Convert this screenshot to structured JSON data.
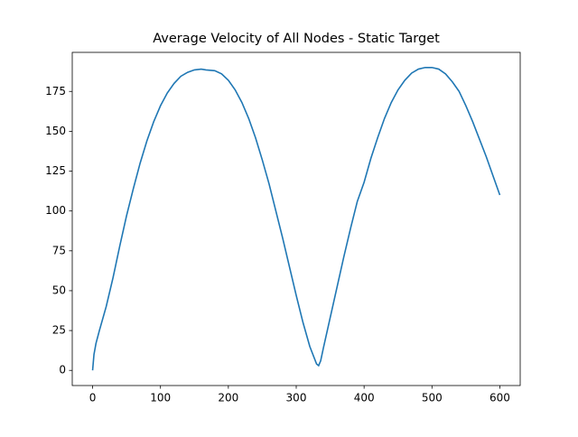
{
  "chart_data": {
    "type": "line",
    "title": "Average Velocity of All Nodes - Static Target",
    "x": [
      0,
      2,
      5,
      10,
      20,
      30,
      40,
      50,
      60,
      70,
      80,
      90,
      100,
      110,
      120,
      130,
      140,
      150,
      160,
      167,
      180,
      190,
      200,
      210,
      220,
      230,
      240,
      250,
      260,
      270,
      280,
      290,
      300,
      310,
      320,
      330,
      333,
      336,
      340,
      350,
      360,
      370,
      380,
      390,
      400,
      410,
      420,
      430,
      440,
      450,
      460,
      470,
      480,
      490,
      500,
      510,
      520,
      530,
      540,
      550,
      560,
      570,
      580,
      590,
      600
    ],
    "series": [
      {
        "color": "#1f77b4",
        "values": [
          0,
          10,
          17,
          25,
          40,
          58,
          78,
          97,
          114,
          130,
          144,
          156,
          166,
          174,
          180,
          184.5,
          187,
          188.5,
          189,
          188.5,
          188,
          186,
          182,
          176,
          168,
          158,
          146,
          132,
          117,
          100,
          83,
          65,
          47,
          30,
          15,
          4,
          3,
          6,
          14,
          33,
          52,
          71,
          89,
          106,
          118,
          133,
          146,
          158,
          168,
          176,
          182,
          186.5,
          189,
          190,
          190,
          189,
          186,
          181,
          175,
          166,
          156,
          145,
          134,
          122,
          110
        ]
      }
    ],
    "xlim": [
      -30,
      630
    ],
    "ylim": [
      -9.5,
      199.5
    ],
    "xticks": [
      0,
      100,
      200,
      300,
      400,
      500,
      600
    ],
    "yticks": [
      0,
      25,
      50,
      75,
      100,
      125,
      150,
      175
    ],
    "grid": false
  }
}
